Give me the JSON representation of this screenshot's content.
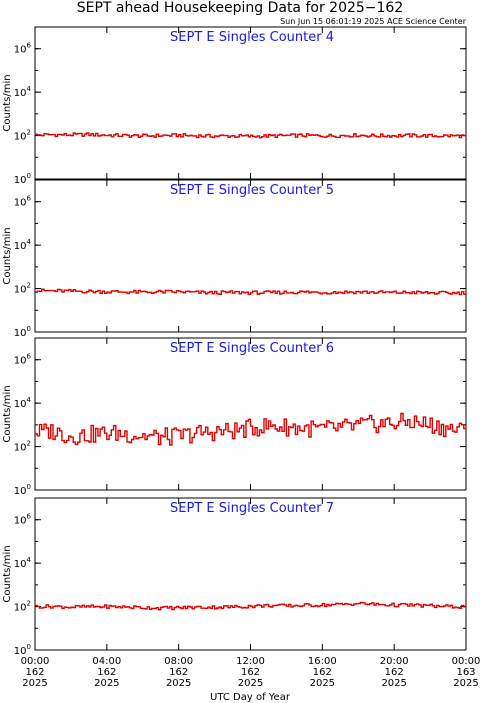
{
  "page": {
    "title": "SEPT ahead Housekeeping Data for 2025−162",
    "timestamp": "Sun Jun 15 06:01:19 2025 ACE Science Center",
    "x_axis_label": "UTC Day of Year"
  },
  "x_ticks": [
    {
      "hour": 0,
      "time": "00:00",
      "day": "162",
      "year": "2025"
    },
    {
      "hour": 4,
      "time": "04:00",
      "day": "162",
      "year": "2025"
    },
    {
      "hour": 8,
      "time": "08:00",
      "day": "162",
      "year": "2025"
    },
    {
      "hour": 12,
      "time": "12:00",
      "day": "162",
      "year": "2025"
    },
    {
      "hour": 16,
      "time": "16:00",
      "day": "162",
      "year": "2025"
    },
    {
      "hour": 20,
      "time": "20:00",
      "day": "162",
      "year": "2025"
    },
    {
      "hour": 24,
      "time": "00:00",
      "day": "163",
      "year": "2025"
    }
  ],
  "chart_data": [
    {
      "type": "line",
      "title": "SEPT E Singles Counter 4",
      "ylabel": "Counts/min",
      "xlabel": "UTC Day of Year",
      "y_scale": "log",
      "ylim": [
        1,
        10000000
      ],
      "y_ticks": [
        {
          "exp": 0
        },
        {
          "exp": 2
        },
        {
          "exp": 4
        },
        {
          "exp": 6
        }
      ],
      "xlim_hours": [
        0,
        24
      ],
      "color": "#e10000",
      "series": [
        {
          "x_hours": [
            0,
            1,
            2,
            3,
            4,
            5,
            6,
            7,
            8,
            9,
            10,
            11,
            12,
            13,
            14,
            15,
            16,
            17,
            18,
            19,
            20,
            21,
            22,
            23,
            24
          ],
          "values": [
            105,
            110,
            108,
            112,
            104,
            100,
            96,
            100,
            102,
            98,
            94,
            96,
            92,
            95,
            99,
            101,
            97,
            100,
            104,
            98,
            99,
            101,
            96,
            98,
            95
          ]
        }
      ]
    },
    {
      "type": "line",
      "title": "SEPT E Singles Counter 5",
      "ylabel": "Counts/min",
      "xlabel": "UTC Day of Year",
      "y_scale": "log",
      "ylim": [
        1,
        10000000
      ],
      "y_ticks": [
        {
          "exp": 0
        },
        {
          "exp": 2
        },
        {
          "exp": 4
        },
        {
          "exp": 6
        }
      ],
      "xlim_hours": [
        0,
        24
      ],
      "color": "#e10000",
      "series": [
        {
          "x_hours": [
            0,
            1,
            2,
            3,
            4,
            5,
            6,
            7,
            8,
            9,
            10,
            11,
            12,
            13,
            14,
            15,
            16,
            17,
            18,
            19,
            20,
            21,
            22,
            23,
            24
          ],
          "values": [
            80,
            78,
            76,
            74,
            72,
            70,
            68,
            70,
            71,
            66,
            64,
            66,
            65,
            64,
            67,
            69,
            66,
            68,
            70,
            67,
            65,
            66,
            63,
            62,
            64
          ]
        }
      ]
    },
    {
      "type": "line",
      "title": "SEPT E Singles Counter 6",
      "ylabel": "Counts/min",
      "xlabel": "UTC Day of Year",
      "y_scale": "log",
      "ylim": [
        1,
        10000000
      ],
      "y_ticks": [
        {
          "exp": 0
        },
        {
          "exp": 2
        },
        {
          "exp": 4
        },
        {
          "exp": 6
        }
      ],
      "xlim_hours": [
        0,
        24
      ],
      "color": "#e10000",
      "series": [
        {
          "x_hours": [
            0,
            1,
            2,
            3,
            4,
            5,
            6,
            7,
            8,
            9,
            10,
            11,
            12,
            13,
            14,
            15,
            16,
            17,
            18,
            19,
            20,
            21,
            22,
            23,
            24
          ],
          "values": [
            450,
            520,
            300,
            350,
            420,
            380,
            320,
            260,
            300,
            400,
            480,
            520,
            700,
            900,
            800,
            700,
            620,
            700,
            900,
            1100,
            1200,
            1400,
            1000,
            700,
            500
          ]
        }
      ]
    },
    {
      "type": "line",
      "title": "SEPT E Singles Counter 7",
      "ylabel": "Counts/min",
      "xlabel": "UTC Day of Year",
      "y_scale": "log",
      "ylim": [
        1,
        10000000
      ],
      "y_ticks": [
        {
          "exp": 0
        },
        {
          "exp": 2
        },
        {
          "exp": 4
        },
        {
          "exp": 6
        }
      ],
      "xlim_hours": [
        0,
        24
      ],
      "color": "#e10000",
      "series": [
        {
          "x_hours": [
            0,
            1,
            2,
            3,
            4,
            5,
            6,
            7,
            8,
            9,
            10,
            11,
            12,
            13,
            14,
            15,
            16,
            17,
            18,
            19,
            20,
            21,
            22,
            23,
            24
          ],
          "values": [
            100,
            102,
            95,
            98,
            100,
            96,
            90,
            86,
            88,
            92,
            94,
            96,
            104,
            112,
            108,
            114,
            118,
            124,
            140,
            126,
            118,
            116,
            108,
            100,
            98
          ]
        }
      ]
    }
  ]
}
